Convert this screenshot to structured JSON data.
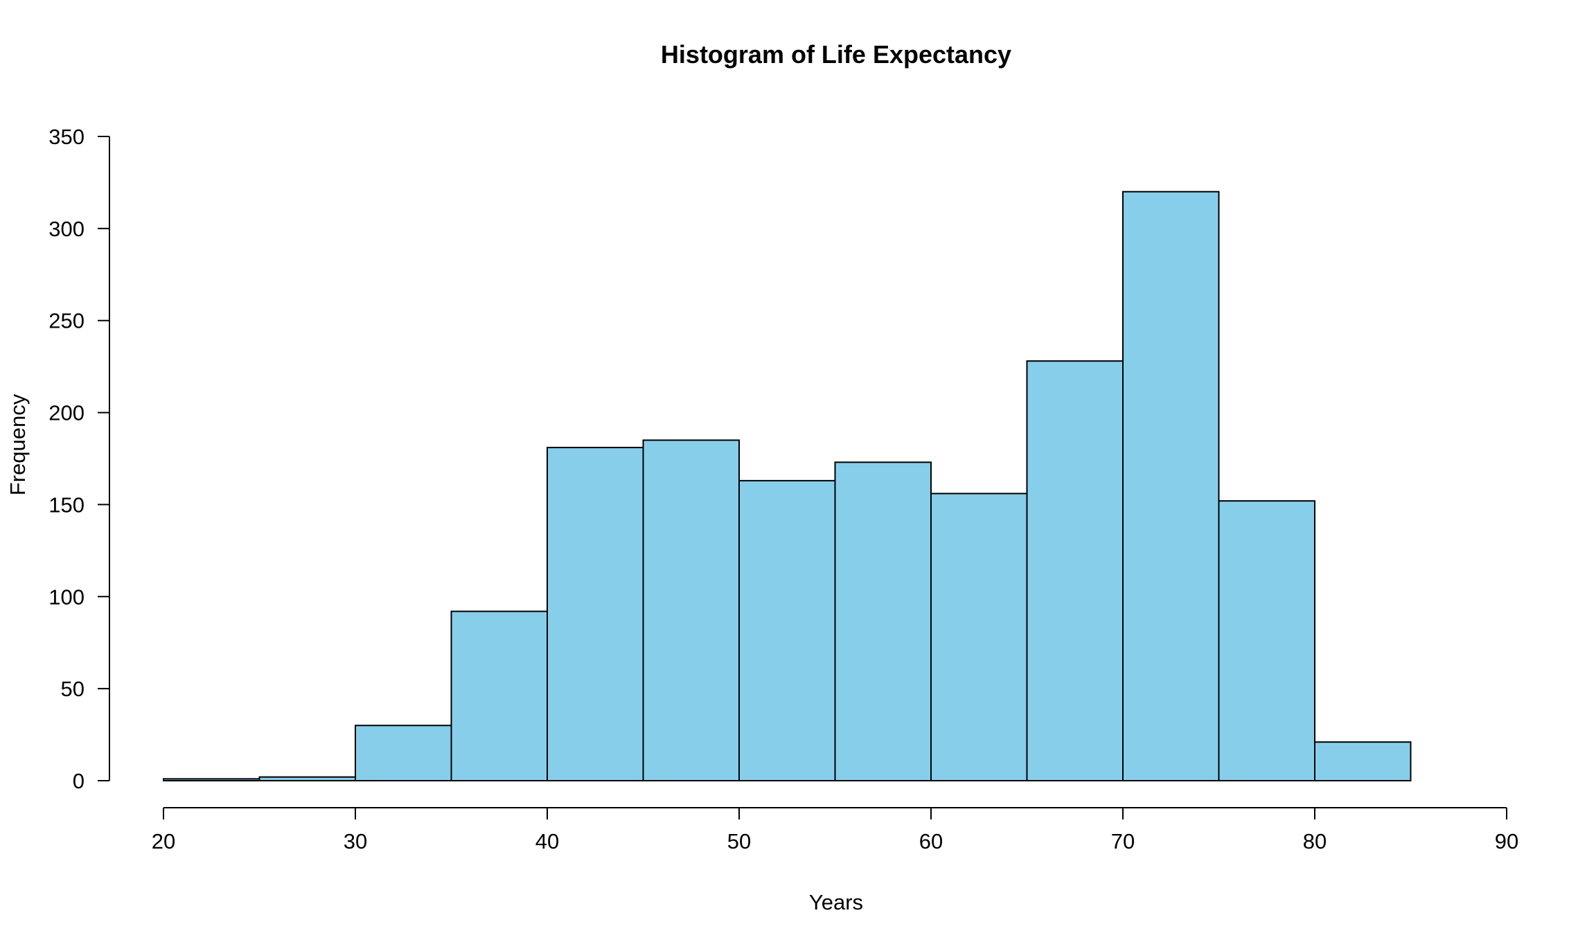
{
  "chart_data": {
    "type": "bar",
    "subtype": "histogram",
    "title": "Histogram of Life Expectancy",
    "xlabel": "Years",
    "ylabel": "Frequency",
    "bin_edges": [
      20,
      25,
      30,
      35,
      40,
      45,
      50,
      55,
      60,
      65,
      70,
      75,
      80,
      85
    ],
    "values": [
      1,
      2,
      30,
      92,
      181,
      185,
      163,
      173,
      156,
      228,
      320,
      152,
      21
    ],
    "xlim": [
      20,
      90
    ],
    "ylim": [
      0,
      350
    ],
    "x_ticks": [
      20,
      30,
      40,
      50,
      60,
      70,
      80,
      90
    ],
    "y_ticks": [
      0,
      50,
      100,
      150,
      200,
      250,
      300,
      350
    ],
    "bar_color": "#87CEEB",
    "grid": false,
    "legend": "none"
  }
}
